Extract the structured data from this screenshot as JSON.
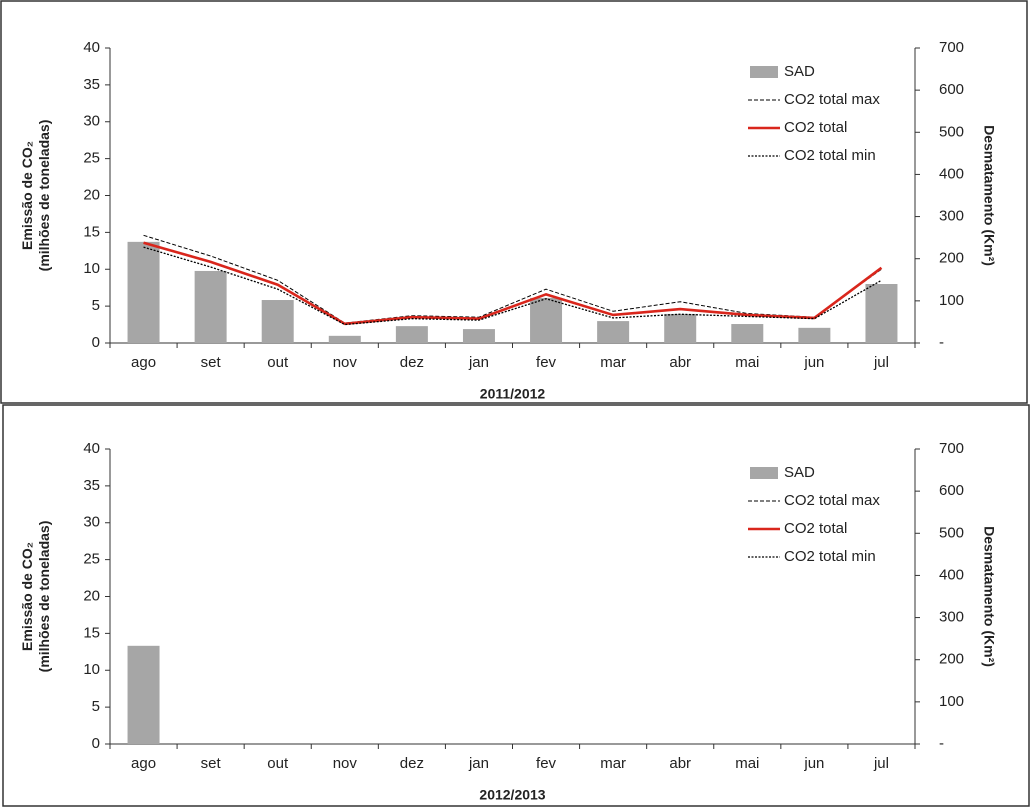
{
  "chart_data": [
    {
      "type": "bar-line",
      "x_label": "2011/2012",
      "y_label": [
        "Emissão de CO₂",
        "(milhões de toneladas)"
      ],
      "y2_label": "Desmatamento (Km²)",
      "categories": [
        "ago",
        "set",
        "out",
        "nov",
        "dez",
        "jan",
        "fev",
        "mar",
        "abr",
        "mai",
        "jun",
        "jul"
      ],
      "ylim": [
        0,
        40
      ],
      "yticks": [
        0,
        5,
        10,
        15,
        20,
        25,
        30,
        35,
        40
      ],
      "y2lim": [
        0,
        700
      ],
      "y2ticks": [
        {
          "value": 0,
          "label": "-"
        },
        100,
        200,
        300,
        400,
        500,
        600,
        700
      ],
      "series": [
        {
          "name": "SAD",
          "type": "bar",
          "axis": "y2",
          "color": "#a6a6a6",
          "values": [
            240,
            171,
            102,
            17,
            40,
            33,
            107,
            52,
            69,
            45,
            36,
            140
          ]
        },
        {
          "name": "CO2 total max",
          "type": "line",
          "style": "dashed",
          "color": "#000000",
          "values": [
            14.6,
            11.8,
            8.5,
            2.7,
            3.7,
            3.5,
            7.3,
            4.3,
            5.6,
            4.0,
            3.5,
            10.0
          ]
        },
        {
          "name": "CO2 total",
          "type": "line",
          "style": "solid",
          "color": "#d9261c",
          "values": [
            13.6,
            11.0,
            7.9,
            2.6,
            3.5,
            3.3,
            6.6,
            3.8,
            4.6,
            3.8,
            3.4,
            10.2
          ]
        },
        {
          "name": "CO2 total min",
          "type": "line",
          "style": "dotted",
          "color": "#000000",
          "values": [
            13.0,
            10.3,
            7.3,
            2.5,
            3.3,
            3.1,
            6.0,
            3.4,
            3.9,
            3.6,
            3.3,
            8.5
          ]
        }
      ]
    },
    {
      "type": "bar-line",
      "x_label": "2012/2013",
      "y_label": [
        "Emissão de CO₂",
        "(milhões de toneladas)"
      ],
      "y2_label": "Desmatamento (Km²)",
      "categories": [
        "ago",
        "set",
        "out",
        "nov",
        "dez",
        "jan",
        "fev",
        "mar",
        "abr",
        "mai",
        "jun",
        "jul"
      ],
      "ylim": [
        0,
        40
      ],
      "yticks": [
        0,
        5,
        10,
        15,
        20,
        25,
        30,
        35,
        40
      ],
      "y2lim": [
        0,
        700
      ],
      "y2ticks": [
        {
          "value": 0,
          "label": "-"
        },
        100,
        200,
        300,
        400,
        500,
        600,
        700
      ],
      "series": [
        {
          "name": "SAD",
          "type": "bar",
          "axis": "y2",
          "color": "#a6a6a6",
          "values": [
            233,
            null,
            null,
            null,
            null,
            null,
            null,
            null,
            null,
            null,
            null,
            null
          ]
        },
        {
          "name": "CO2 total max",
          "type": "line",
          "style": "dashed",
          "color": "#000000",
          "values": [
            null,
            null,
            null,
            null,
            null,
            null,
            null,
            null,
            null,
            null,
            null,
            null
          ]
        },
        {
          "name": "CO2 total",
          "type": "line",
          "style": "solid",
          "color": "#d9261c",
          "values": [
            null,
            null,
            null,
            null,
            null,
            null,
            null,
            null,
            null,
            null,
            null,
            null
          ]
        },
        {
          "name": "CO2 total min",
          "type": "line",
          "style": "dotted",
          "color": "#000000",
          "values": [
            null,
            null,
            null,
            null,
            null,
            null,
            null,
            null,
            null,
            null,
            null,
            null
          ]
        }
      ]
    }
  ]
}
